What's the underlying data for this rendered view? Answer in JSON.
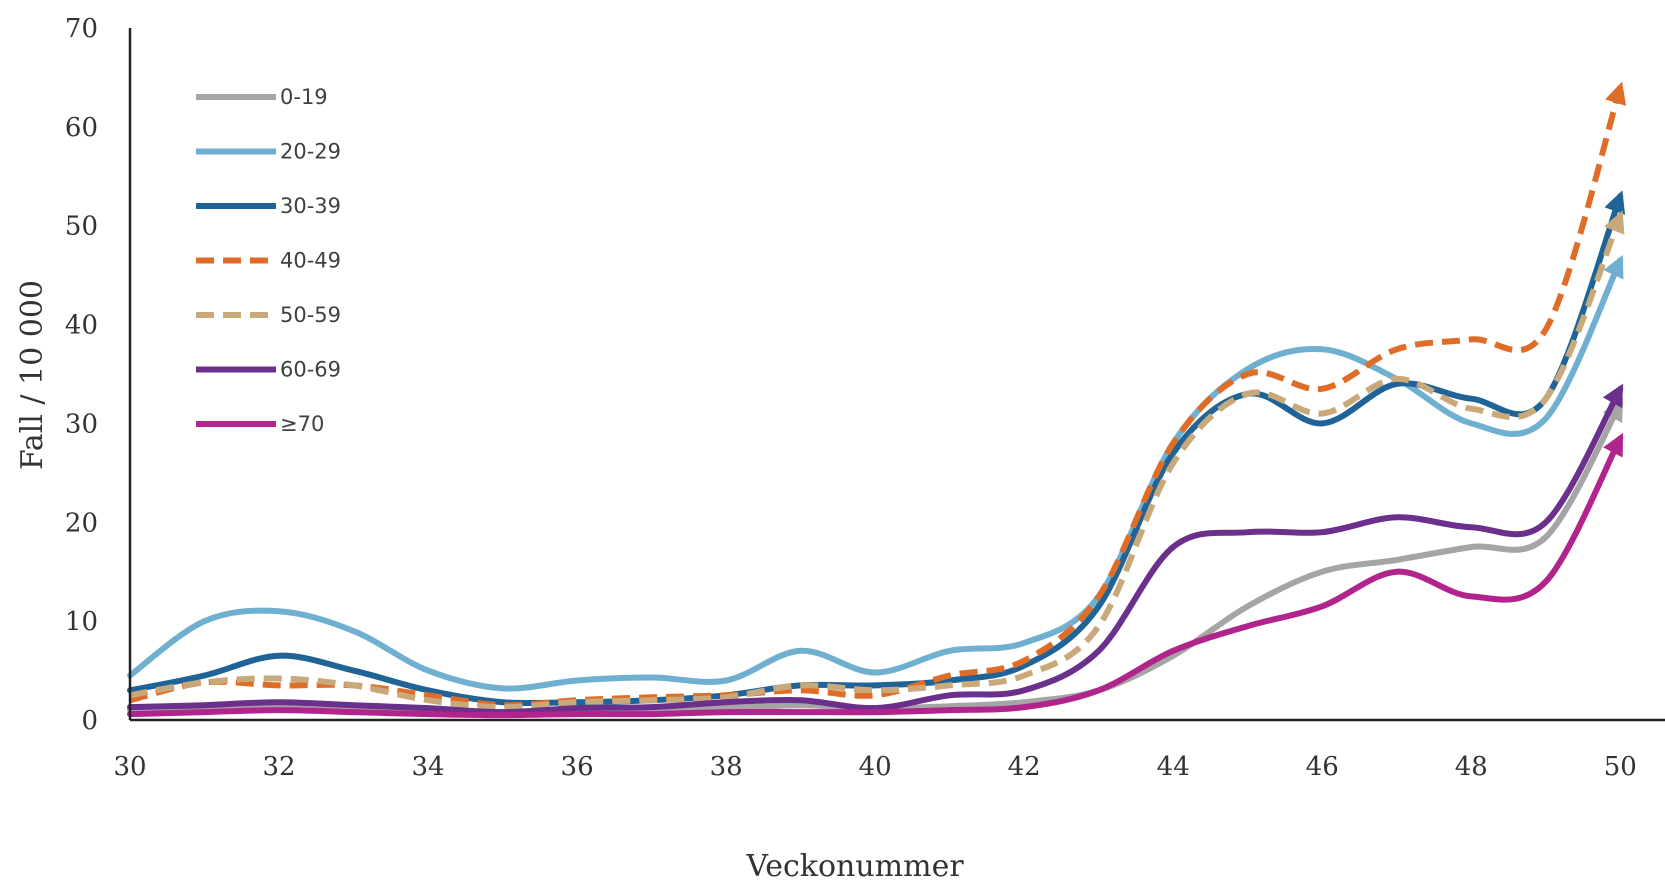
{
  "chart_data": {
    "type": "line",
    "title": "",
    "xlabel": "Veckonummer",
    "ylabel": "Fall / 10 000",
    "xlim": [
      30,
      50.6
    ],
    "ylim": [
      0,
      70
    ],
    "x_ticks": [
      "30",
      "32",
      "34",
      "36",
      "38",
      "40",
      "42",
      "44",
      "46",
      "48",
      "50"
    ],
    "y_ticks": [
      "0",
      "10",
      "20",
      "30",
      "40",
      "50",
      "60",
      "70"
    ],
    "grid": false,
    "legend_position": "top-left",
    "x": [
      30,
      31,
      32,
      33,
      34,
      35,
      36,
      37,
      38,
      39,
      40,
      41,
      42,
      43,
      44,
      45,
      46,
      47,
      48,
      49,
      50
    ],
    "series": [
      {
        "name": "0-19",
        "color": "#A5A5A5",
        "dash": "solid",
        "values": [
          1.0,
          1.2,
          1.4,
          1.2,
          1.0,
          0.8,
          1.0,
          1.0,
          1.2,
          1.5,
          1.2,
          1.4,
          1.8,
          3.0,
          6.5,
          11.5,
          15.0,
          16.2,
          17.5,
          18.5,
          32.0
        ]
      },
      {
        "name": "20-29",
        "color": "#6FB0D0",
        "dash": "solid",
        "values": [
          4.5,
          10.0,
          11.0,
          9.0,
          5.0,
          3.2,
          4.0,
          4.3,
          4.0,
          7.0,
          4.8,
          7.0,
          7.8,
          12.5,
          28.0,
          35.5,
          37.5,
          34.5,
          30.0,
          30.5,
          46.5
        ]
      },
      {
        "name": "30-39",
        "color": "#1F6397",
        "dash": "solid",
        "values": [
          3.0,
          4.5,
          6.5,
          5.0,
          3.0,
          1.8,
          1.8,
          2.0,
          2.5,
          3.5,
          3.5,
          4.0,
          5.5,
          11.5,
          27.0,
          33.0,
          30.0,
          34.0,
          32.5,
          32.5,
          53.0
        ]
      },
      {
        "name": "40-49",
        "color": "#E06D27",
        "dash": "dashed",
        "values": [
          2.0,
          3.8,
          3.5,
          3.5,
          2.5,
          1.5,
          2.0,
          2.3,
          2.5,
          3.0,
          2.5,
          4.5,
          6.0,
          12.5,
          28.0,
          35.0,
          33.5,
          37.5,
          38.5,
          39.5,
          64.0
        ]
      },
      {
        "name": "50-59",
        "color": "#C9A97A",
        "dash": "dashed",
        "values": [
          2.5,
          3.8,
          4.2,
          3.5,
          2.0,
          1.3,
          1.8,
          2.0,
          2.3,
          3.5,
          3.0,
          3.5,
          4.5,
          9.5,
          26.0,
          33.0,
          31.0,
          34.5,
          31.5,
          32.5,
          51.0
        ]
      },
      {
        "name": "60-69",
        "color": "#6B2F8C",
        "dash": "solid",
        "values": [
          1.3,
          1.5,
          1.8,
          1.5,
          1.2,
          0.8,
          1.2,
          1.3,
          1.8,
          2.0,
          1.2,
          2.5,
          3.0,
          7.0,
          17.5,
          19.0,
          19.0,
          20.5,
          19.5,
          20.0,
          33.5
        ]
      },
      {
        "name": "≥70",
        "color": "#B0248C",
        "dash": "solid",
        "values": [
          0.6,
          0.8,
          1.0,
          0.8,
          0.6,
          0.5,
          0.6,
          0.6,
          0.8,
          0.8,
          0.8,
          1.0,
          1.3,
          3.0,
          7.0,
          9.5,
          11.5,
          15.0,
          12.5,
          14.0,
          28.5
        ]
      }
    ]
  }
}
